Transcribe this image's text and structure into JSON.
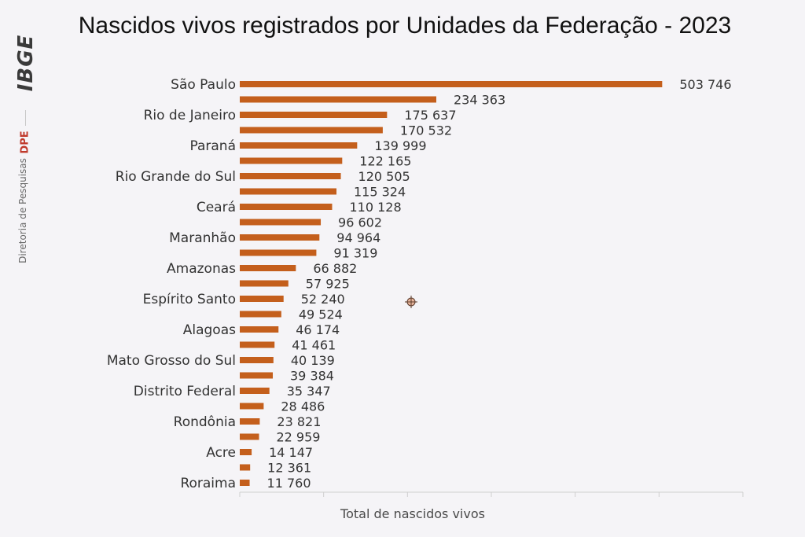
{
  "brand": {
    "logo": "IBGE",
    "dept": "DPE",
    "subtitle": "Diretoria de Pesquisas"
  },
  "chart_data": {
    "type": "bar",
    "orientation": "horizontal",
    "title": "Nascidos vivos registrados por Unidades da Federação - 2023",
    "xlabel": "Total de nascidos vivos",
    "ylabel": "",
    "xlim": [
      0,
      600000
    ],
    "grid": false,
    "legend": "none",
    "bar_color": "#c45f1c",
    "categories": [
      "São Paulo",
      "",
      "Rio de Janeiro",
      "",
      "Paraná",
      "",
      "Rio Grande do Sul",
      "",
      "Ceará",
      "",
      "Maranhão",
      "",
      "Amazonas",
      "",
      "Espírito Santo",
      "",
      "Alagoas",
      "",
      "Mato Grosso do Sul",
      "",
      "Distrito Federal",
      "",
      "Rondônia",
      "",
      "Acre",
      "",
      "Roraima"
    ],
    "values": [
      503746,
      234363,
      175637,
      170532,
      139999,
      122165,
      120505,
      115324,
      110128,
      96602,
      94964,
      91319,
      66882,
      57925,
      52240,
      49524,
      46174,
      41461,
      40139,
      39384,
      35347,
      28486,
      23821,
      22959,
      14147,
      12361,
      11760
    ],
    "value_labels": [
      "503 746",
      "234 363",
      "175 637",
      "170 532",
      "139 999",
      "122 165",
      "120 505",
      "115 324",
      "110 128",
      "96 602",
      "94 964",
      "91 319",
      "66 882",
      "57 925",
      "52 240",
      "49 524",
      "46 174",
      "41 461",
      "40 139",
      "39 384",
      "35 347",
      "28 486",
      "23 821",
      "22 959",
      "14 147",
      "12 361",
      "11 760"
    ]
  }
}
